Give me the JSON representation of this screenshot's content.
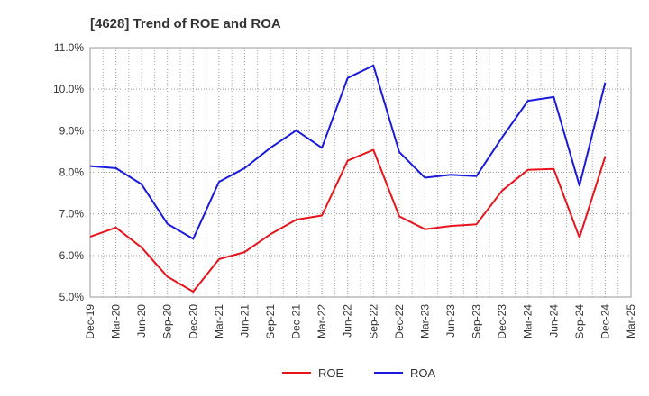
{
  "chart_data": {
    "type": "line",
    "title": "[4628]  Trend of ROE and ROA",
    "xlabel": "",
    "ylabel": "",
    "categories": [
      "Dec-19",
      "Mar-20",
      "Jun-20",
      "Sep-20",
      "Dec-20",
      "Mar-21",
      "Jun-21",
      "Sep-21",
      "Dec-21",
      "Mar-22",
      "Jun-22",
      "Sep-22",
      "Dec-22",
      "Mar-23",
      "Jun-23",
      "Sep-23",
      "Dec-23",
      "Mar-24",
      "Jun-24",
      "Sep-24",
      "Dec-24",
      "Mar-25"
    ],
    "ylim": [
      5.0,
      11.0
    ],
    "yticks": [
      "5.0%",
      "6.0%",
      "7.0%",
      "8.0%",
      "9.0%",
      "10.0%",
      "11.0%"
    ],
    "ytick_values": [
      5,
      6,
      7,
      8,
      9,
      10,
      11
    ],
    "grid": true,
    "legend_position": "bottom-center",
    "series": [
      {
        "name": "ROE",
        "color": "#e8141c",
        "values": [
          6.45,
          6.67,
          6.19,
          5.49,
          5.13,
          5.91,
          6.08,
          6.51,
          6.86,
          6.96,
          8.28,
          8.54,
          6.94,
          6.63,
          6.71,
          6.75,
          7.56,
          8.06,
          8.08,
          6.43,
          8.38,
          null
        ]
      },
      {
        "name": "ROA",
        "color": "#1a1adc",
        "values": [
          8.15,
          8.1,
          7.71,
          6.76,
          6.4,
          7.77,
          8.1,
          8.59,
          9.01,
          8.59,
          10.27,
          10.57,
          8.49,
          7.87,
          7.94,
          7.91,
          8.84,
          9.72,
          9.81,
          7.68,
          10.16,
          null
        ]
      }
    ]
  }
}
